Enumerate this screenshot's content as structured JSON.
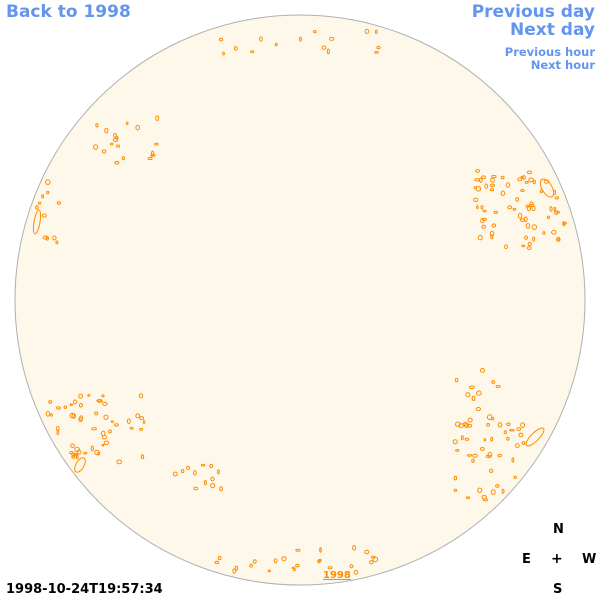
{
  "nav": {
    "back_label": "Back to 1998",
    "previous_day_label": "Previous day",
    "next_day_label": "Next day",
    "previous_hour_label": "Previous hour",
    "next_hour_label": "Next hour"
  },
  "timestamp": "1998-10-24T19:57:34",
  "compass": {
    "north": "N",
    "south": "S",
    "east": "E",
    "west": "W",
    "center": "+"
  },
  "disk": {
    "year_label": "1998"
  },
  "colors": {
    "disk_fill": "#fdf8ea",
    "disk_border": "#b0b0b0",
    "contour": "#ff8c00",
    "link": "#6495ed"
  }
}
